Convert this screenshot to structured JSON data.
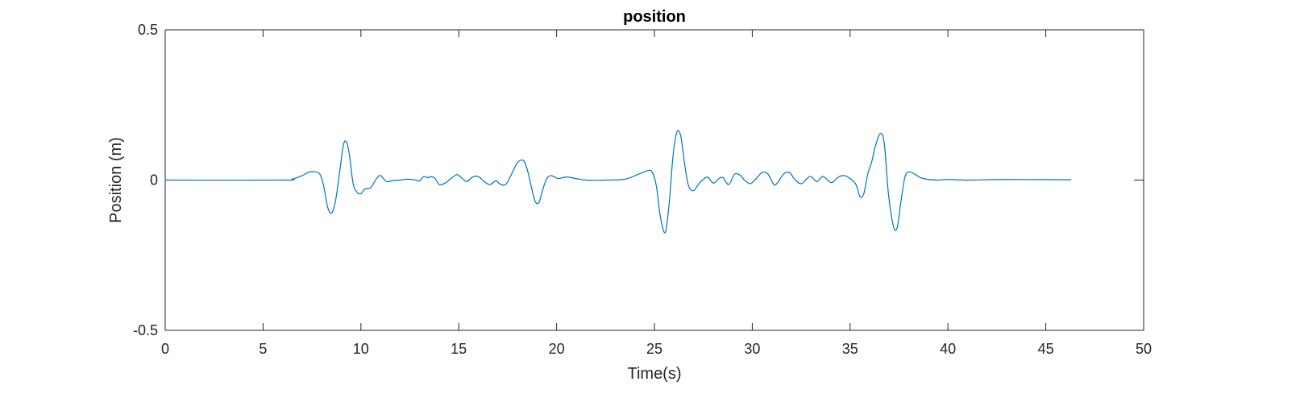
{
  "chart_data": {
    "type": "line",
    "title": "position",
    "xlabel": "Time(s)",
    "ylabel": "Position (m)",
    "xlim": [
      0,
      50
    ],
    "ylim": [
      -0.5,
      0.5
    ],
    "xticks": [
      0,
      5,
      10,
      15,
      20,
      25,
      30,
      35,
      40,
      45,
      50
    ],
    "xtick_labels": [
      "0",
      "5",
      "10",
      "15",
      "20",
      "25",
      "30",
      "35",
      "40",
      "45",
      "50"
    ],
    "yticks": [
      -0.5,
      0,
      0.5
    ],
    "ytick_labels": [
      "-0.5",
      "0",
      "0.5"
    ],
    "grid": false,
    "series": [
      {
        "color": "#0072BD",
        "x": [
          0,
          6.0,
          6.5,
          7.0,
          7.3,
          7.6,
          7.9,
          8.1,
          8.3,
          8.5,
          8.7,
          8.9,
          9.1,
          9.25,
          9.4,
          9.6,
          9.8,
          10.0,
          10.2,
          10.5,
          10.8,
          11.0,
          11.3,
          11.6,
          12.0,
          12.4,
          12.8,
          13.0,
          13.2,
          13.4,
          13.6,
          13.8,
          14.0,
          14.3,
          14.6,
          14.9,
          15.1,
          15.4,
          15.7,
          16.0,
          16.3,
          16.6,
          16.9,
          17.1,
          17.4,
          17.7,
          18.0,
          18.3,
          18.5,
          18.7,
          18.9,
          19.1,
          19.3,
          19.5,
          19.7,
          19.9,
          20.1,
          20.5,
          21.0,
          21.5,
          22.5,
          23.5,
          24.2,
          24.7,
          24.9,
          25.1,
          25.3,
          25.55,
          25.75,
          25.95,
          26.15,
          26.35,
          26.55,
          26.75,
          27.0,
          27.3,
          27.7,
          28.0,
          28.3,
          28.5,
          28.8,
          29.1,
          29.4,
          29.6,
          29.9,
          30.2,
          30.5,
          30.8,
          31.1,
          31.3,
          31.6,
          31.9,
          32.2,
          32.5,
          32.8,
          33.0,
          33.3,
          33.6,
          33.9,
          34.1,
          34.4,
          34.7,
          35.0,
          35.3,
          35.5,
          35.7,
          35.9,
          36.1,
          36.3,
          36.55,
          36.75,
          36.95,
          37.2,
          37.4,
          37.6,
          37.8,
          38.0,
          38.3,
          38.6,
          39.0,
          39.5,
          40.0,
          41.0,
          43.0,
          46.3
        ],
        "y": [
          0,
          0,
          0.003,
          0.015,
          0.025,
          0.028,
          0.02,
          -0.02,
          -0.09,
          -0.11,
          -0.07,
          0.02,
          0.115,
          0.128,
          0.09,
          -0.01,
          -0.04,
          -0.045,
          -0.03,
          -0.025,
          0.005,
          0.015,
          -0.005,
          -0.002,
          0.0,
          0.003,
          0.0,
          -0.003,
          0.012,
          0.008,
          0.011,
          0.005,
          -0.015,
          -0.01,
          0.005,
          0.018,
          0.01,
          -0.005,
          0.01,
          0.012,
          -0.005,
          -0.015,
          -0.002,
          -0.013,
          -0.015,
          0.02,
          0.058,
          0.065,
          0.035,
          -0.02,
          -0.07,
          -0.075,
          -0.03,
          0.005,
          0.015,
          0.01,
          0.005,
          0.01,
          0.005,
          0.0,
          0.0,
          0.003,
          0.02,
          0.032,
          0.025,
          -0.02,
          -0.12,
          -0.175,
          -0.08,
          0.08,
          0.16,
          0.145,
          0.05,
          -0.02,
          -0.035,
          -0.01,
          0.01,
          -0.01,
          0.005,
          0.008,
          -0.015,
          0.02,
          0.015,
          0.0,
          -0.012,
          0.005,
          0.025,
          0.02,
          -0.015,
          -0.008,
          0.02,
          0.025,
          0.0,
          -0.012,
          0.005,
          0.012,
          -0.005,
          0.012,
          -0.003,
          -0.008,
          0.01,
          0.015,
          0.005,
          -0.015,
          -0.055,
          -0.045,
          0.02,
          0.06,
          0.115,
          0.155,
          0.12,
          -0.04,
          -0.15,
          -0.16,
          -0.07,
          0.01,
          0.027,
          0.02,
          0.008,
          0.002,
          0.0,
          0.002,
          0.0,
          0.002,
          0.001
        ]
      }
    ]
  }
}
